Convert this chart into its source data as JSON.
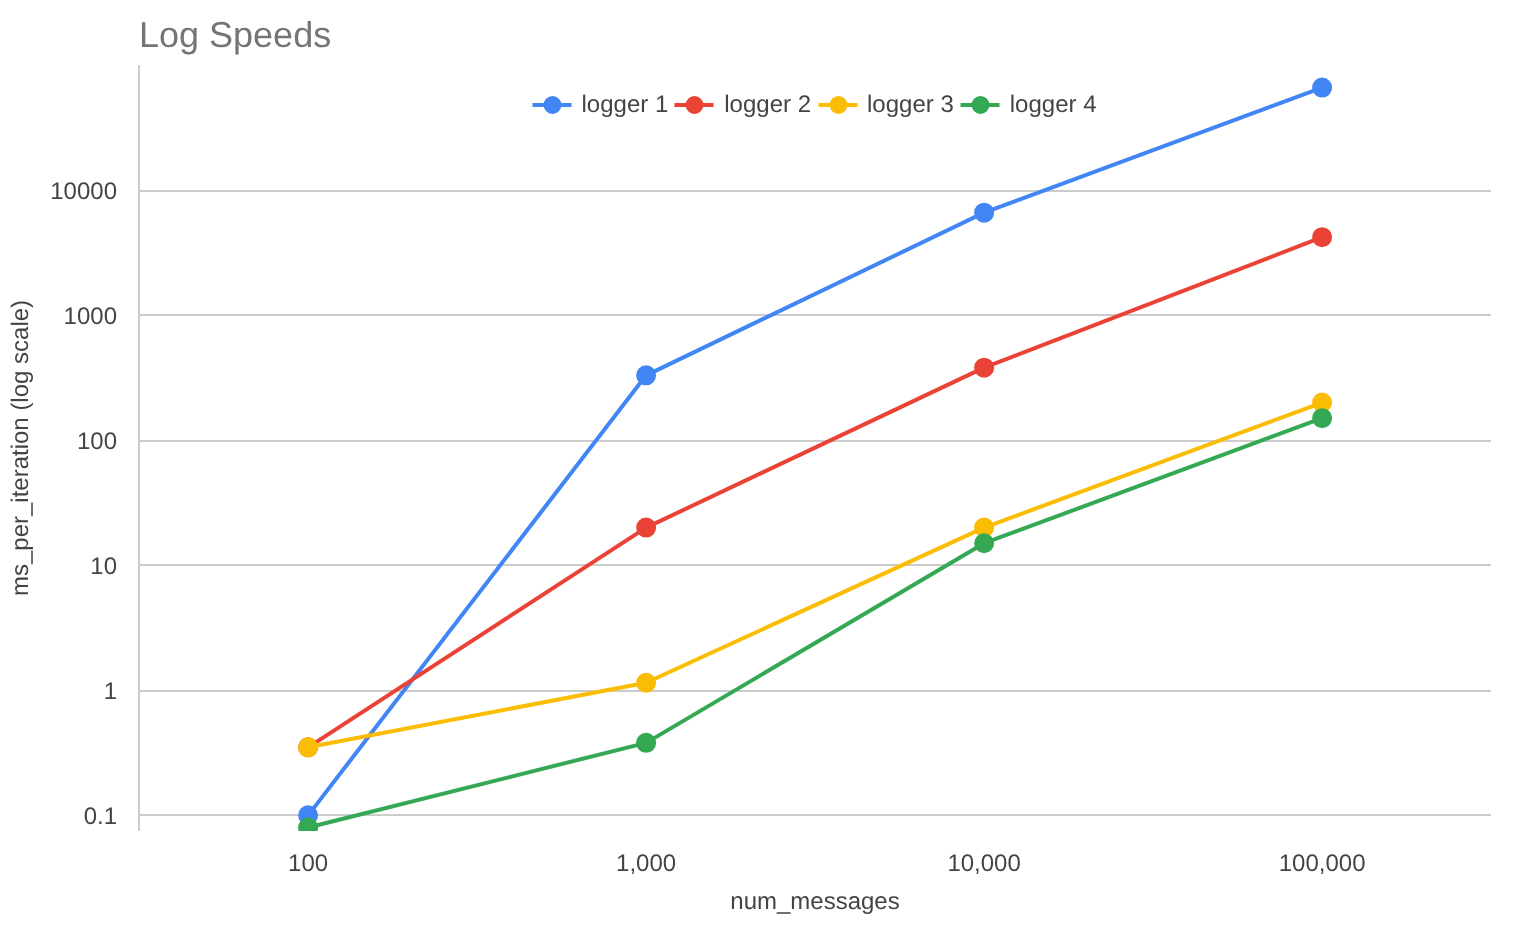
{
  "chart_data": {
    "type": "line",
    "title": "Log Speeds",
    "xlabel": "num_messages",
    "ylabel": "ms_per_iteration (log scale)",
    "x": [
      100,
      1000,
      10000,
      100000
    ],
    "series": [
      {
        "name": "logger 1",
        "color": "#4285f4",
        "values": [
          0.1,
          330,
          6600,
          66000
        ]
      },
      {
        "name": "logger 2",
        "color": "#ea4335",
        "values": [
          0.35,
          20,
          380,
          4200
        ]
      },
      {
        "name": "logger 3",
        "color": "#fbbc04",
        "values": [
          0.35,
          1.15,
          20,
          200
        ]
      },
      {
        "name": "logger 4",
        "color": "#34a853",
        "values": [
          0.08,
          0.38,
          15,
          150
        ]
      }
    ],
    "log": "xy",
    "xlim": [
      31.6,
      316000
    ],
    "ylim": [
      0.075,
      100000
    ],
    "xticks": [
      100,
      {
        "value": 1000,
        "label": "1,000"
      },
      {
        "value": 10000,
        "label": "10,000"
      },
      {
        "value": 100000,
        "label": "100,000"
      }
    ],
    "yticks": [
      0.1,
      1,
      10,
      100,
      1000,
      10000
    ],
    "grid": "y",
    "legend": "top",
    "marker": "circle",
    "line_style": "solid"
  }
}
